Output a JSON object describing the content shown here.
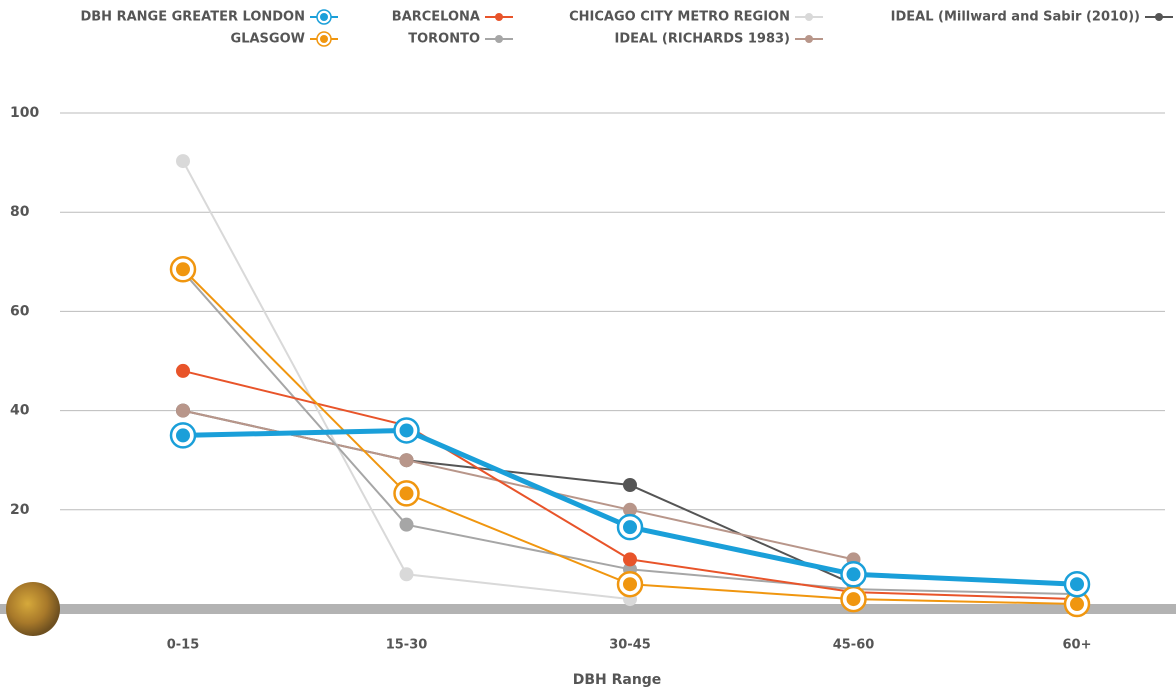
{
  "chart_data": {
    "type": "line",
    "x_label": "DBH Range",
    "categories": [
      "0-15",
      "15-30",
      "30-45",
      "45-60",
      "60+"
    ],
    "ylim": [
      0,
      100
    ],
    "yticks": [
      20,
      40,
      60,
      80,
      100
    ],
    "grid": true,
    "series": [
      {
        "name": "DBH RANGE GREATER LONDON",
        "color": "#1a9fd9",
        "ring": true,
        "values": [
          35,
          36,
          16.5,
          7,
          5
        ]
      },
      {
        "name": "GLASGOW",
        "color": "#f0960f",
        "ring": true,
        "values": [
          68.5,
          23.3,
          5,
          2,
          1
        ]
      },
      {
        "name": "BARCELONA",
        "color": "#e8542a",
        "values": [
          48,
          37,
          10,
          3.4,
          2
        ]
      },
      {
        "name": "TORONTO",
        "color": "#a6a6a6",
        "values": [
          68,
          17,
          8,
          4,
          3
        ]
      },
      {
        "name": "CHICAGO CITY METRO REGION",
        "color": "#d9d9d9",
        "values": [
          90.3,
          7,
          2,
          null,
          null
        ]
      },
      {
        "name": "IDEAL (RICHARDS 1983)",
        "color": "#b8968a",
        "values": [
          40,
          30,
          20,
          10,
          null
        ]
      },
      {
        "name": "IDEAL (Millward and Sabir (2010))",
        "color": "#555555",
        "values": [
          40,
          30,
          25,
          5,
          null
        ]
      }
    ]
  }
}
